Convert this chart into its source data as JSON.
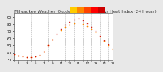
{
  "title": "Milwaukee Weather  Outdoor Temperature vs Heat Index (24 Hours)",
  "title_fontsize": 4.2,
  "background_color": "#e8e8e8",
  "plot_bg_color": "#ffffff",
  "ylim": [
    30,
    95
  ],
  "yticks": [
    30,
    40,
    50,
    60,
    70,
    80,
    90
  ],
  "ytick_fontsize": 3.5,
  "xtick_fontsize": 3.0,
  "hours": [
    0,
    1,
    2,
    3,
    4,
    5,
    6,
    7,
    8,
    9,
    10,
    11,
    12,
    13,
    14,
    15,
    16,
    17,
    18,
    19,
    20,
    21,
    22,
    23
  ],
  "temp": [
    38,
    36,
    35,
    34,
    34,
    35,
    37,
    42,
    50,
    58,
    65,
    71,
    76,
    79,
    81,
    82,
    80,
    77,
    73,
    68,
    62,
    56,
    50,
    45
  ],
  "heat_index": [
    38,
    36,
    35,
    34,
    34,
    35,
    37,
    42,
    50,
    58,
    66,
    73,
    79,
    83,
    86,
    88,
    85,
    81,
    76,
    70,
    63,
    57,
    51,
    46
  ],
  "temp_color": "#ff8800",
  "heat_color": "#cc0000",
  "grid_color": "#aaaaaa",
  "bar_colors": [
    "#ffcc00",
    "#ff8800",
    "#ff4400",
    "#ff0000",
    "#cc0000"
  ],
  "xlim": [
    0,
    23
  ]
}
